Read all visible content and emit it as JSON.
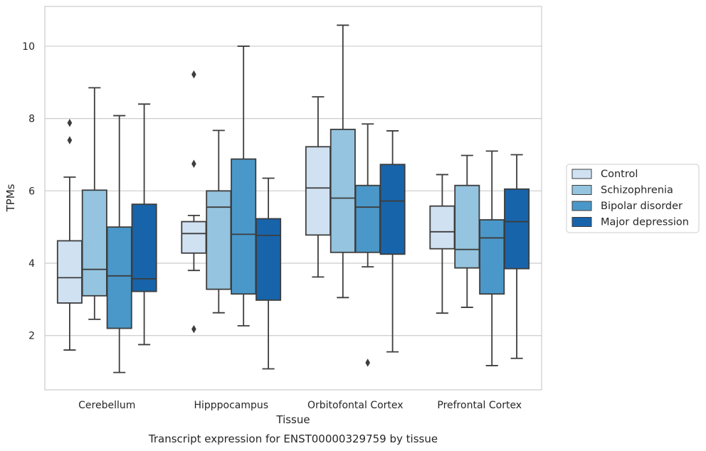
{
  "chart_data": {
    "type": "box",
    "title": "",
    "caption": "Transcript expression for ENST00000329759 by tissue",
    "xlabel": "Tissue",
    "ylabel": "TPMs",
    "ylim": [
      0.5,
      11.1
    ],
    "yticks": [
      2,
      4,
      6,
      8,
      10
    ],
    "grid": "horizontal",
    "legend_placement": "right",
    "categories": [
      "Cerebellum",
      "Hipppocampus",
      "Orbitofontal Cortex",
      "Prefrontal Cortex"
    ],
    "series": [
      {
        "name": "Control",
        "color": "#d0e1f2",
        "boxes": [
          {
            "whislo": 1.6,
            "q1": 2.9,
            "med": 3.6,
            "q3": 4.62,
            "whishi": 6.38,
            "fliers": [
              7.4,
              7.88
            ]
          },
          {
            "whislo": 3.8,
            "q1": 4.28,
            "med": 4.82,
            "q3": 5.15,
            "whishi": 5.32,
            "fliers": [
              2.18,
              6.75,
              9.22
            ]
          },
          {
            "whislo": 3.62,
            "q1": 4.78,
            "med": 6.08,
            "q3": 7.22,
            "whishi": 8.6,
            "fliers": []
          },
          {
            "whislo": 2.62,
            "q1": 4.4,
            "med": 4.87,
            "q3": 5.58,
            "whishi": 6.45,
            "fliers": []
          }
        ]
      },
      {
        "name": "Schizophrenia",
        "color": "#94c4df",
        "boxes": [
          {
            "whislo": 2.45,
            "q1": 3.1,
            "med": 3.83,
            "q3": 6.02,
            "whishi": 8.85,
            "fliers": []
          },
          {
            "whislo": 2.63,
            "q1": 3.28,
            "med": 5.55,
            "q3": 6.0,
            "whishi": 7.67,
            "fliers": []
          },
          {
            "whislo": 3.05,
            "q1": 4.3,
            "med": 5.8,
            "q3": 7.7,
            "whishi": 10.58,
            "fliers": []
          },
          {
            "whislo": 2.78,
            "q1": 3.87,
            "med": 4.38,
            "q3": 6.15,
            "whishi": 6.98,
            "fliers": []
          }
        ]
      },
      {
        "name": "Bipolar disorder",
        "color": "#4a98c9",
        "boxes": [
          {
            "whislo": 0.98,
            "q1": 2.2,
            "med": 3.65,
            "q3": 5.0,
            "whishi": 8.08,
            "fliers": []
          },
          {
            "whislo": 2.27,
            "q1": 3.15,
            "med": 4.8,
            "q3": 6.88,
            "whishi": 10.0,
            "fliers": []
          },
          {
            "whislo": 3.9,
            "q1": 4.3,
            "med": 5.55,
            "q3": 6.15,
            "whishi": 7.85,
            "fliers": [
              1.25
            ]
          },
          {
            "whislo": 1.17,
            "q1": 3.15,
            "med": 4.7,
            "q3": 5.2,
            "whishi": 7.1,
            "fliers": []
          }
        ]
      },
      {
        "name": "Major depression",
        "color": "#1764ab",
        "boxes": [
          {
            "whislo": 1.75,
            "q1": 3.22,
            "med": 3.57,
            "q3": 5.63,
            "whishi": 8.4,
            "fliers": []
          },
          {
            "whislo": 1.08,
            "q1": 2.98,
            "med": 4.77,
            "q3": 5.23,
            "whishi": 6.35,
            "fliers": []
          },
          {
            "whislo": 1.55,
            "q1": 4.25,
            "med": 5.72,
            "q3": 6.73,
            "whishi": 7.66,
            "fliers": []
          },
          {
            "whislo": 1.37,
            "q1": 3.85,
            "med": 5.15,
            "q3": 6.05,
            "whishi": 7.0,
            "fliers": []
          }
        ]
      }
    ]
  }
}
